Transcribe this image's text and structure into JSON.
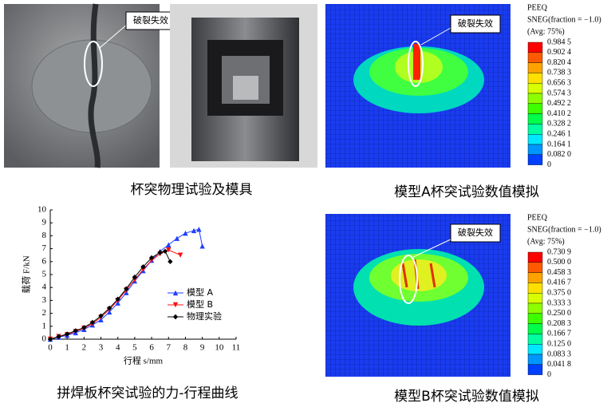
{
  "photo_test": {
    "annotation": "破裂失效",
    "caption": "杯突物理试验及模具"
  },
  "model_a": {
    "annotation": "破裂失效",
    "caption": "模型A杯突试验数值模拟",
    "legend": {
      "title": "PEEQ",
      "subtitle": "SNEG(fraction = −1.0)",
      "avg": "(Avg: 75%)",
      "labels": [
        "0.984 5",
        "0.902 4",
        "0.820 4",
        "0.738 3",
        "0.656 3",
        "0.574 3",
        "0.492 2",
        "0.410 2",
        "0.328 2",
        "0.246 1",
        "0.164 1",
        "0.082 0",
        "0"
      ],
      "colors": [
        "#ff0000",
        "#ff5a00",
        "#ffa200",
        "#ffe000",
        "#d8ff00",
        "#8cff00",
        "#3cff00",
        "#00ff48",
        "#00ffa0",
        "#00e8ff",
        "#0096ff",
        "#0040ff"
      ]
    }
  },
  "model_b": {
    "annotation": "破裂失效",
    "caption": "模型B杯突试验数值模拟",
    "legend": {
      "title": "PEEQ",
      "subtitle": "SNEG(fraction = −1.0)",
      "avg": "(Avg: 75%)",
      "labels": [
        "0.730 9",
        "0.500 0",
        "0.458 3",
        "0.416 7",
        "0.375 0",
        "0.333 3",
        "0.250 0",
        "0.208 3",
        "0.166 7",
        "0.125 0",
        "0.083 3",
        "0.041 8",
        "0"
      ],
      "colors": [
        "#ff0000",
        "#ff5a00",
        "#ffa200",
        "#ffe000",
        "#d8ff00",
        "#8cff00",
        "#3cff00",
        "#00ff48",
        "#00ffa0",
        "#00e8ff",
        "#0096ff",
        "#0040ff"
      ]
    }
  },
  "chart_data": {
    "type": "line",
    "title": "拼焊板杯突试验的力-行程曲线",
    "xlabel": "行程 s/mm",
    "ylabel": "载荷 F/kN",
    "xlim": [
      0,
      11
    ],
    "ylim": [
      0,
      10
    ],
    "xticks": [
      0,
      1,
      2,
      3,
      4,
      5,
      6,
      7,
      8,
      9,
      10,
      11
    ],
    "yticks": [
      0,
      1,
      2,
      3,
      4,
      5,
      6,
      7,
      8,
      9,
      10
    ],
    "series": [
      {
        "name": "模型 A",
        "color": "#1f3fff",
        "marker": "triangle-up",
        "x": [
          0,
          0.5,
          1,
          1.5,
          2,
          2.5,
          3,
          3.5,
          4,
          4.5,
          5,
          5.5,
          6,
          6.5,
          7,
          7.5,
          8,
          8.5,
          8.8,
          9.0
        ],
        "values": [
          0,
          0.15,
          0.3,
          0.5,
          0.75,
          1.1,
          1.5,
          2.1,
          2.8,
          3.6,
          4.5,
          5.3,
          6.1,
          6.8,
          7.3,
          7.8,
          8.2,
          8.4,
          8.5,
          7.2
        ]
      },
      {
        "name": "模型 B",
        "color": "#ff1010",
        "marker": "triangle-down",
        "x": [
          0,
          0.5,
          1,
          1.5,
          2,
          2.5,
          3,
          3.5,
          4,
          4.5,
          5,
          5.5,
          6,
          6.5,
          7,
          7.7
        ],
        "values": [
          0,
          0.2,
          0.35,
          0.6,
          0.85,
          1.2,
          1.7,
          2.3,
          3.0,
          3.8,
          4.6,
          5.4,
          6.1,
          6.6,
          6.9,
          6.5
        ]
      },
      {
        "name": "物理实验",
        "color": "#000000",
        "marker": "diamond",
        "x": [
          0,
          0.5,
          1,
          1.5,
          2,
          2.5,
          3,
          3.5,
          4,
          4.5,
          5,
          5.5,
          6,
          6.5,
          6.8,
          7.1
        ],
        "values": [
          0,
          0.2,
          0.4,
          0.65,
          0.9,
          1.3,
          1.8,
          2.4,
          3.1,
          3.9,
          4.8,
          5.6,
          6.3,
          6.7,
          6.8,
          6.0
        ]
      }
    ]
  }
}
